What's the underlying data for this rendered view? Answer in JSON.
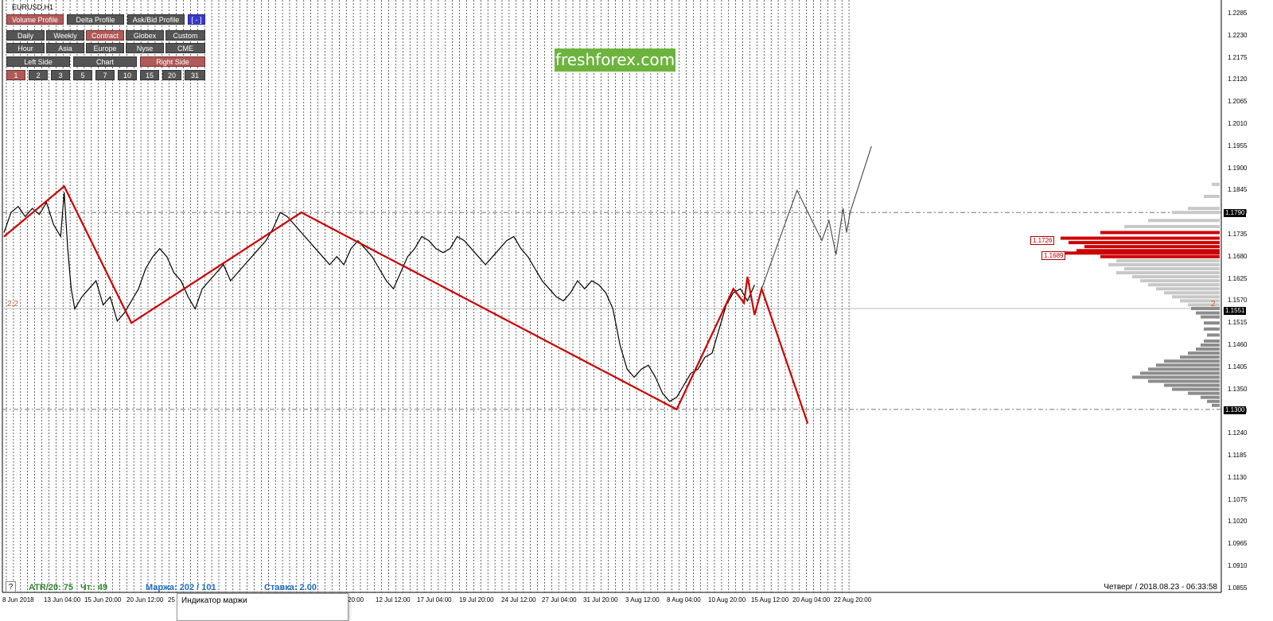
{
  "symbol": "EURUSD,H1",
  "watermark": "freshforex.com",
  "toolbar": {
    "row1": [
      {
        "label": "Volume Profile",
        "state": "active"
      },
      {
        "label": "Delta Profile",
        "state": "normal"
      },
      {
        "label": "Ask/Bid Profile",
        "state": "normal"
      },
      {
        "label": "[ - ]",
        "state": "blue"
      }
    ],
    "row2": [
      {
        "label": "Daily",
        "state": "normal"
      },
      {
        "label": "Weekly",
        "state": "normal"
      },
      {
        "label": "Contract",
        "state": "active"
      },
      {
        "label": "Globex",
        "state": "normal"
      },
      {
        "label": "Custom",
        "state": "normal"
      }
    ],
    "row3": [
      {
        "label": "Hour",
        "state": "normal"
      },
      {
        "label": "Asia",
        "state": "normal"
      },
      {
        "label": "Europe",
        "state": "normal"
      },
      {
        "label": "Nyse",
        "state": "normal"
      },
      {
        "label": "CME",
        "state": "normal"
      }
    ],
    "row4": [
      {
        "label": "Left Side",
        "state": "normal"
      },
      {
        "label": "Chart",
        "state": "normal"
      },
      {
        "label": "Right Side",
        "state": "active"
      }
    ],
    "row5": [
      {
        "label": "1",
        "state": "active"
      },
      {
        "label": "2",
        "state": "normal"
      },
      {
        "label": "3",
        "state": "normal"
      },
      {
        "label": "5",
        "state": "normal"
      },
      {
        "label": "7",
        "state": "normal"
      },
      {
        "label": "10",
        "state": "normal"
      },
      {
        "label": "15",
        "state": "normal"
      },
      {
        "label": "20",
        "state": "normal"
      },
      {
        "label": "31",
        "state": "normal"
      }
    ]
  },
  "price_axis": [
    "1.2285",
    "1.2230",
    "1.2175",
    "1.2120",
    "1.2065",
    "1.2010",
    "1.1955",
    "1.1900",
    "1.1845",
    "1.1790",
    "1.1735",
    "1.1680",
    "1.1625",
    "1.1570",
    "1.1515",
    "1.1460",
    "1.1405",
    "1.1350",
    "1.1300",
    "1.1240",
    "1.1185",
    "1.1130",
    "1.1075",
    "1.1020",
    "1.0965",
    "1.0910",
    "1.0855"
  ],
  "price_tags": {
    "top": "1.1790",
    "current": "1.1551",
    "bottom": "1.1300"
  },
  "volume_profile_tags": [
    "1.1726",
    "1.1689"
  ],
  "level_markers": {
    "left": "2.2",
    "right": "2"
  },
  "time_axis": [
    "8 Jun 2018",
    "13 Jun 04:00",
    "15 Jun 20:00",
    "20 Jun 12:00",
    "25",
    "20:00",
    "12 Jul 12:00",
    "17 Jul 04:00",
    "19 Jul 20:00",
    "24 Jul 12:00",
    "27 Jul 04:00",
    "31 Jul 20:00",
    "3 Aug 12:00",
    "8 Aug 04:00",
    "10 Aug 20:00",
    "15 Aug 12:00",
    "20 Aug 04:00",
    "22 Aug 20:00"
  ],
  "status_bar": {
    "help": "?",
    "atr_label": "ATR/20: 75",
    "count_label": "Чт.: 49",
    "margin_label": "Маржа: 202 / 101",
    "rate_label": "Ставка: 2.00",
    "datetime": "Четверг  /  2018.08.23  -  06:33:58"
  },
  "tooltip": "Индикатор маржи",
  "colors": {
    "accent_red": "#cc0000",
    "watermark_green": "#6db43e",
    "active_button": "#b05a5a",
    "status_green": "#2e8b2e",
    "status_blue": "#1a6fc4"
  },
  "chart_data": {
    "type": "line",
    "title": "EURUSD,H1",
    "ylim": [
      1.0855,
      1.2285
    ],
    "price_series": [
      [
        0,
        1.174
      ],
      [
        2,
        1.179
      ],
      [
        4,
        1.1805
      ],
      [
        6,
        1.178
      ],
      [
        8,
        1.18
      ],
      [
        10,
        1.1785
      ],
      [
        12,
        1.1815
      ],
      [
        14,
        1.176
      ],
      [
        16,
        1.173
      ],
      [
        17,
        1.184
      ],
      [
        18,
        1.17
      ],
      [
        19,
        1.16
      ],
      [
        20,
        1.155
      ],
      [
        22,
        1.158
      ],
      [
        24,
        1.16
      ],
      [
        26,
        1.162
      ],
      [
        28,
        1.156
      ],
      [
        30,
        1.158
      ],
      [
        32,
        1.152
      ],
      [
        34,
        1.154
      ],
      [
        36,
        1.157
      ],
      [
        38,
        1.16
      ],
      [
        40,
        1.165
      ],
      [
        42,
        1.168
      ],
      [
        44,
        1.17
      ],
      [
        46,
        1.168
      ],
      [
        48,
        1.164
      ],
      [
        50,
        1.162
      ],
      [
        52,
        1.158
      ],
      [
        54,
        1.155
      ],
      [
        56,
        1.16
      ],
      [
        58,
        1.162
      ],
      [
        60,
        1.164
      ],
      [
        62,
        1.166
      ],
      [
        64,
        1.162
      ],
      [
        66,
        1.164
      ],
      [
        68,
        1.166
      ],
      [
        70,
        1.168
      ],
      [
        72,
        1.17
      ],
      [
        74,
        1.172
      ],
      [
        76,
        1.175
      ],
      [
        78,
        1.179
      ],
      [
        80,
        1.178
      ],
      [
        82,
        1.176
      ],
      [
        84,
        1.174
      ],
      [
        86,
        1.172
      ],
      [
        88,
        1.17
      ],
      [
        90,
        1.168
      ],
      [
        92,
        1.166
      ],
      [
        94,
        1.168
      ],
      [
        96,
        1.166
      ],
      [
        98,
        1.17
      ],
      [
        100,
        1.172
      ],
      [
        102,
        1.17
      ],
      [
        104,
        1.168
      ],
      [
        106,
        1.165
      ],
      [
        108,
        1.162
      ],
      [
        110,
        1.16
      ],
      [
        112,
        1.164
      ],
      [
        114,
        1.168
      ],
      [
        116,
        1.17
      ],
      [
        118,
        1.173
      ],
      [
        120,
        1.172
      ],
      [
        122,
        1.17
      ],
      [
        124,
        1.169
      ],
      [
        126,
        1.17
      ],
      [
        128,
        1.173
      ],
      [
        130,
        1.172
      ],
      [
        132,
        1.17
      ],
      [
        134,
        1.168
      ],
      [
        136,
        1.166
      ],
      [
        138,
        1.168
      ],
      [
        140,
        1.17
      ],
      [
        142,
        1.172
      ],
      [
        144,
        1.173
      ],
      [
        146,
        1.17
      ],
      [
        148,
        1.168
      ],
      [
        150,
        1.165
      ],
      [
        152,
        1.162
      ],
      [
        154,
        1.16
      ],
      [
        156,
        1.158
      ],
      [
        158,
        1.157
      ],
      [
        160,
        1.159
      ],
      [
        162,
        1.162
      ],
      [
        164,
        1.16
      ],
      [
        166,
        1.162
      ],
      [
        168,
        1.161
      ],
      [
        170,
        1.159
      ],
      [
        172,
        1.155
      ],
      [
        174,
        1.146
      ],
      [
        176,
        1.14
      ],
      [
        178,
        1.138
      ],
      [
        180,
        1.14
      ],
      [
        182,
        1.141
      ],
      [
        184,
        1.138
      ],
      [
        186,
        1.134
      ],
      [
        188,
        1.132
      ],
      [
        190,
        1.133
      ],
      [
        192,
        1.136
      ],
      [
        194,
        1.139
      ],
      [
        196,
        1.14
      ],
      [
        198,
        1.143
      ],
      [
        200,
        1.144
      ],
      [
        202,
        1.15
      ],
      [
        204,
        1.156
      ],
      [
        206,
        1.159
      ],
      [
        208,
        1.16
      ],
      [
        210,
        1.157
      ],
      [
        212,
        1.161
      ]
    ],
    "zigzag": [
      [
        1.173,
        0
      ],
      [
        1.1855,
        17
      ],
      [
        1.1515,
        36
      ],
      [
        1.179,
        84
      ],
      [
        1.13,
        190
      ],
      [
        1.16,
        206
      ],
      [
        1.1565,
        209
      ],
      [
        1.163,
        210
      ],
      [
        1.1535,
        212
      ],
      [
        1.16,
        214
      ],
      [
        1.1265,
        227
      ]
    ],
    "projection": [
      [
        1.16,
        214
      ],
      [
        1.1845,
        224
      ],
      [
        1.172,
        231
      ],
      [
        1.177,
        233
      ],
      [
        1.1685,
        235
      ],
      [
        1.18,
        237
      ],
      [
        1.174,
        238
      ],
      [
        1.179,
        239
      ],
      [
        1.1955,
        245
      ]
    ],
    "levels": [
      1.179,
      1.1551,
      1.13
    ],
    "volume_profile": [
      [
        1.186,
        0.05
      ],
      [
        1.183,
        0.1
      ],
      [
        1.18,
        0.2
      ],
      [
        1.179,
        0.3
      ],
      [
        1.177,
        0.45
      ],
      [
        1.1755,
        0.6
      ],
      [
        1.174,
        0.75
      ],
      [
        1.1726,
        1.0
      ],
      [
        1.1715,
        0.95
      ],
      [
        1.1705,
        0.85
      ],
      [
        1.1695,
        0.9
      ],
      [
        1.1689,
        0.98
      ],
      [
        1.168,
        0.75
      ],
      [
        1.167,
        0.65
      ],
      [
        1.166,
        0.7
      ],
      [
        1.165,
        0.6
      ],
      [
        1.164,
        0.65
      ],
      [
        1.163,
        0.55
      ],
      [
        1.162,
        0.5
      ],
      [
        1.161,
        0.45
      ],
      [
        1.16,
        0.4
      ],
      [
        1.159,
        0.35
      ],
      [
        1.158,
        0.3
      ],
      [
        1.157,
        0.25
      ],
      [
        1.156,
        0.2
      ],
      [
        1.1551,
        0.18
      ],
      [
        1.154,
        0.15
      ],
      [
        1.153,
        0.12
      ],
      [
        1.1515,
        0.1
      ],
      [
        1.15,
        0.1
      ],
      [
        1.1485,
        0.08
      ],
      [
        1.147,
        0.1
      ],
      [
        1.146,
        0.12
      ],
      [
        1.145,
        0.15
      ],
      [
        1.144,
        0.2
      ],
      [
        1.143,
        0.25
      ],
      [
        1.142,
        0.35
      ],
      [
        1.141,
        0.4
      ],
      [
        1.14,
        0.45
      ],
      [
        1.139,
        0.5
      ],
      [
        1.138,
        0.55
      ],
      [
        1.137,
        0.45
      ],
      [
        1.136,
        0.35
      ],
      [
        1.135,
        0.3
      ],
      [
        1.134,
        0.2
      ],
      [
        1.133,
        0.12
      ],
      [
        1.132,
        0.08
      ],
      [
        1.131,
        0.05
      ]
    ]
  }
}
